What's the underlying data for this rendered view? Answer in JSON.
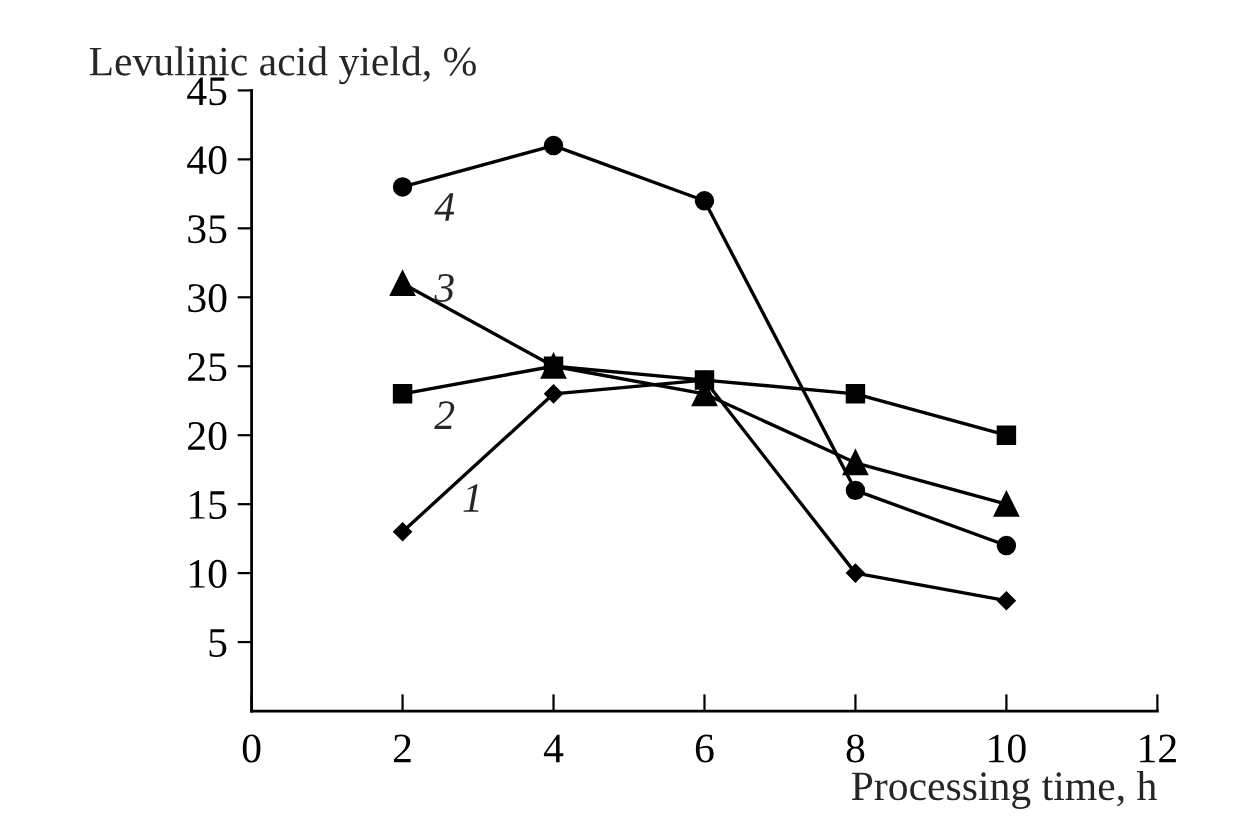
{
  "chart_data": {
    "type": "line",
    "xlabel": "Processing time, h",
    "ylabel": "Levulinic acid yield, %",
    "x": [
      2,
      4,
      6,
      8,
      10
    ],
    "series": [
      {
        "name": "4",
        "color": "#000000",
        "marker": "circle",
        "values": [
          38,
          41,
          37,
          16,
          12
        ]
      },
      {
        "name": "3",
        "color": "#000000",
        "marker": "triangle",
        "values": [
          31,
          25,
          23,
          18,
          15
        ]
      },
      {
        "name": "2",
        "color": "#000000",
        "marker": "square",
        "values": [
          23,
          25,
          24,
          23,
          20
        ]
      },
      {
        "name": "1",
        "color": "#000000",
        "marker": "diamond",
        "values": [
          13,
          23,
          24,
          10,
          8
        ]
      }
    ],
    "xlim": [
      0,
      12
    ],
    "xticks": [
      0,
      2,
      4,
      6,
      8,
      10,
      12
    ],
    "ylim": [
      0,
      45
    ],
    "yticks": [
      5,
      10,
      15,
      20,
      25,
      30,
      35,
      40,
      45
    ],
    "grid": false,
    "legend": false,
    "line_style": "solid"
  }
}
